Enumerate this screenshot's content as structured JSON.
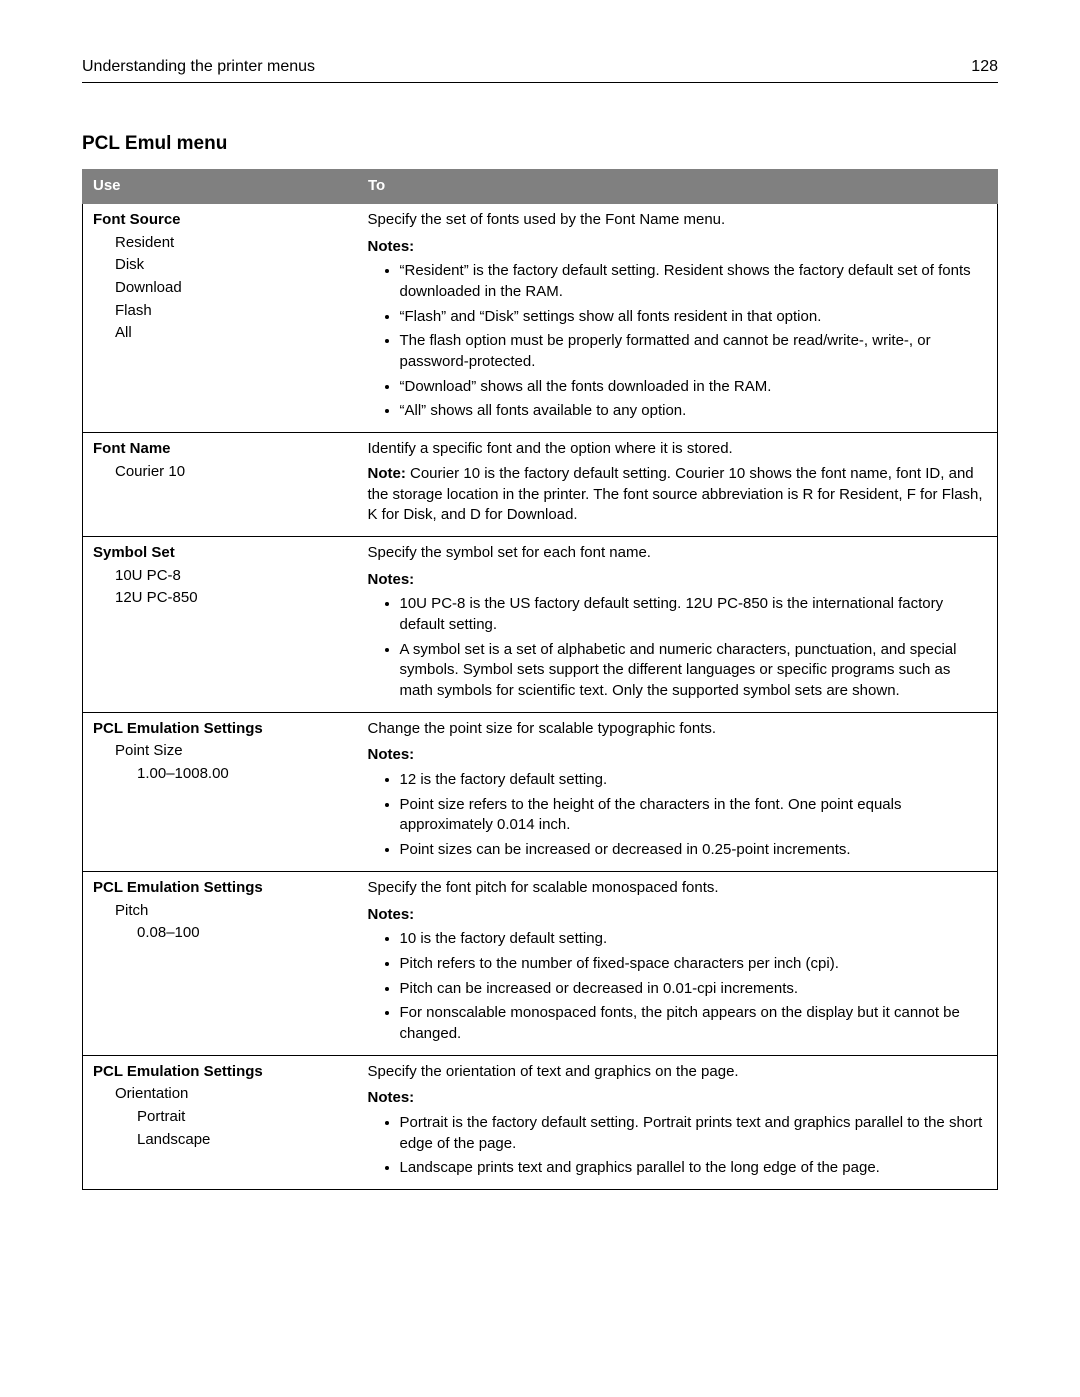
{
  "header": {
    "title": "Understanding the printer menus",
    "page": "128"
  },
  "section_title": "PCL Emul menu",
  "table": {
    "headers": {
      "use": "Use",
      "to": "To"
    },
    "rows": [
      {
        "use": {
          "title": "Font Source",
          "items": [
            "Resident",
            "Disk",
            "Download",
            "Flash",
            "All"
          ]
        },
        "to": {
          "lead": "Specify the set of fonts used by the Font Name menu.",
          "notes_label": "Notes:",
          "bullets": [
            "“Resident” is the factory default setting. Resident shows the factory default set of fonts downloaded in the RAM.",
            "“Flash” and “Disk” settings show all fonts resident in that option.",
            "The flash option must be properly formatted and cannot be read/write-, write-, or password-protected.",
            "“Download” shows all the fonts downloaded in the RAM.",
            "“All” shows all fonts available to any option."
          ]
        }
      },
      {
        "use": {
          "title": "Font Name",
          "items": [
            "Courier 10"
          ]
        },
        "to": {
          "lead": "Identify a specific font and the option where it is stored.",
          "note_label": "Note:",
          "note_text": " Courier 10 is the factory default setting. Courier 10 shows the font name, font ID, and the storage location in the printer. The font source abbreviation is R for Resident, F for Flash, K for Disk, and D for Download."
        }
      },
      {
        "use": {
          "title": "Symbol Set",
          "items": [
            "10U PC-8",
            "12U PC-850"
          ]
        },
        "to": {
          "lead": "Specify the symbol set for each font name.",
          "notes_label": "Notes:",
          "bullets": [
            "10U PC-8 is the US factory default setting. 12U PC-850 is the international factory default setting.",
            "A symbol set is a set of alphabetic and numeric characters, punctuation, and special symbols. Symbol sets support the different languages or specific programs such as math symbols for scientific text. Only the supported symbol sets are shown."
          ]
        }
      },
      {
        "use": {
          "title": "PCL Emulation Settings",
          "items": [
            "Point Size"
          ],
          "subsub": [
            "1.00–1008.00"
          ]
        },
        "to": {
          "lead": "Change the point size for scalable typographic fonts.",
          "notes_label": "Notes:",
          "bullets": [
            "12 is the factory default setting.",
            "Point size refers to the height of the characters in the font. One point equals approximately 0.014 inch.",
            "Point sizes can be increased or decreased in 0.25-point increments."
          ]
        }
      },
      {
        "use": {
          "title": "PCL Emulation Settings",
          "items": [
            "Pitch"
          ],
          "subsub": [
            "0.08–100"
          ]
        },
        "to": {
          "lead": "Specify the font pitch for scalable monospaced fonts.",
          "notes_label": "Notes:",
          "bullets": [
            "10 is the factory default setting.",
            "Pitch refers to the number of fixed-space characters per inch (cpi).",
            "Pitch can be increased or decreased in 0.01-cpi increments.",
            "For nonscalable monospaced fonts, the pitch appears on the display but it cannot be changed."
          ]
        }
      },
      {
        "use": {
          "title": "PCL Emulation Settings",
          "items": [
            "Orientation"
          ],
          "subsub": [
            "Portrait",
            "Landscape"
          ]
        },
        "to": {
          "lead": "Specify the orientation of text and graphics on the page.",
          "notes_label": "Notes:",
          "bullets": [
            "Portrait is the factory default setting. Portrait prints text and graphics parallel to the short edge of the page.",
            "Landscape prints text and graphics parallel to the long edge of the page."
          ]
        }
      }
    ]
  }
}
